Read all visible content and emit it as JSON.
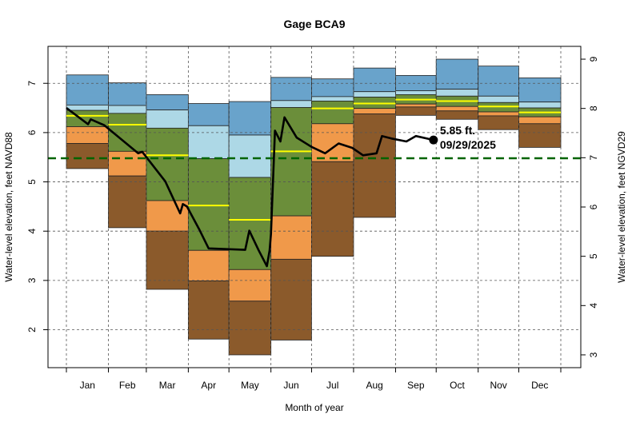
{
  "chart_data": {
    "type": "area",
    "title": "Gage BCA9",
    "xlabel": "Month of year",
    "ylabel_left": "Water-level elevation, feet NAVD88",
    "ylabel_right": "Water-level elevation, feet NGVD29",
    "ylim_left": [
      1.23,
      7.75
    ],
    "left_ticks": [
      2,
      3,
      4,
      5,
      6,
      7
    ],
    "right_ticks": [
      3,
      4,
      5,
      6,
      7,
      8,
      9
    ],
    "right_axis_offset": 1.51,
    "grid": true,
    "colors": {
      "blue": "#69A3CB",
      "lightblue": "#ADD8E6",
      "green": "#6B8E3A",
      "orange": "#F0994A",
      "brown": "#8B5A2B",
      "median": "#FFFF00",
      "reference": "#006400",
      "series": "#000000"
    },
    "reference_line": 5.48,
    "months": [
      {
        "label": "Jan",
        "blue_top": 7.17,
        "lightblue_top": 6.56,
        "green_top": 6.45,
        "orange_top": 6.12,
        "brown_top": 5.78,
        "bottom": 5.27,
        "median": 6.34
      },
      {
        "label": "Feb",
        "blue_top": 7.01,
        "lightblue_top": 6.55,
        "green_top": 6.39,
        "orange_top": 5.62,
        "brown_top": 5.12,
        "bottom": 4.07,
        "median": 6.16
      },
      {
        "label": "Mar",
        "blue_top": 6.77,
        "lightblue_top": 6.46,
        "green_top": 6.09,
        "orange_top": 4.62,
        "brown_top": 4.0,
        "bottom": 2.82,
        "median": 5.54
      },
      {
        "label": "Apr",
        "blue_top": 6.59,
        "lightblue_top": 6.14,
        "green_top": 5.47,
        "orange_top": 3.61,
        "brown_top": 2.99,
        "bottom": 1.81,
        "median": 4.52
      },
      {
        "label": "May",
        "blue_top": 6.63,
        "lightblue_top": 5.95,
        "green_top": 5.09,
        "orange_top": 3.22,
        "brown_top": 2.58,
        "bottom": 1.49,
        "median": 4.23
      },
      {
        "label": "Jun",
        "blue_top": 7.12,
        "lightblue_top": 6.65,
        "green_top": 6.51,
        "orange_top": 4.31,
        "brown_top": 3.43,
        "bottom": 1.79,
        "median": 5.62
      },
      {
        "label": "Jul",
        "blue_top": 7.09,
        "lightblue_top": 6.73,
        "green_top": 6.64,
        "orange_top": 6.18,
        "brown_top": 5.41,
        "bottom": 3.49,
        "median": 6.49
      },
      {
        "label": "Aug",
        "blue_top": 7.31,
        "lightblue_top": 6.83,
        "green_top": 6.72,
        "orange_top": 6.49,
        "brown_top": 6.38,
        "bottom": 4.28,
        "median": 6.59
      },
      {
        "label": "Sep",
        "blue_top": 7.16,
        "lightblue_top": 6.85,
        "green_top": 6.77,
        "orange_top": 6.58,
        "brown_top": 6.52,
        "bottom": 6.35,
        "median": 6.67
      },
      {
        "label": "Oct",
        "blue_top": 7.49,
        "lightblue_top": 6.88,
        "green_top": 6.74,
        "orange_top": 6.53,
        "brown_top": 6.44,
        "bottom": 6.27,
        "median": 6.64
      },
      {
        "label": "Nov",
        "blue_top": 7.35,
        "lightblue_top": 6.74,
        "green_top": 6.61,
        "orange_top": 6.42,
        "brown_top": 6.34,
        "bottom": 6.06,
        "median": 6.53
      },
      {
        "label": "Dec",
        "blue_top": 7.11,
        "lightblue_top": 6.62,
        "green_top": 6.5,
        "orange_top": 6.32,
        "brown_top": 6.18,
        "bottom": 5.7,
        "median": 6.41
      }
    ],
    "series": {
      "x": [
        "01-01",
        "01-17",
        "01-19",
        "01-29",
        "02-23",
        "02-26",
        "03-15",
        "03-26",
        "03-28",
        "03-31",
        "04-09",
        "04-16",
        "05-13",
        "05-16",
        "05-23",
        "05-29",
        "05-31",
        "06-01",
        "06-04",
        "06-08",
        "06-11",
        "06-20",
        "07-01",
        "07-11",
        "07-21",
        "07-31",
        "08-08",
        "08-18",
        "08-22",
        "08-29",
        "09-09",
        "09-16",
        "09-29"
      ],
      "y": [
        6.5,
        6.17,
        6.27,
        6.15,
        5.58,
        5.61,
        5.01,
        4.36,
        4.55,
        4.5,
        4.04,
        3.65,
        3.62,
        4.01,
        3.61,
        3.29,
        3.61,
        3.94,
        6.04,
        5.82,
        6.31,
        5.9,
        5.71,
        5.58,
        5.78,
        5.69,
        5.54,
        5.58,
        5.93,
        5.88,
        5.82,
        5.93,
        5.85
      ]
    },
    "annotation": {
      "value_label": "5.85 ft.",
      "date_label": "09/29/2025"
    }
  }
}
